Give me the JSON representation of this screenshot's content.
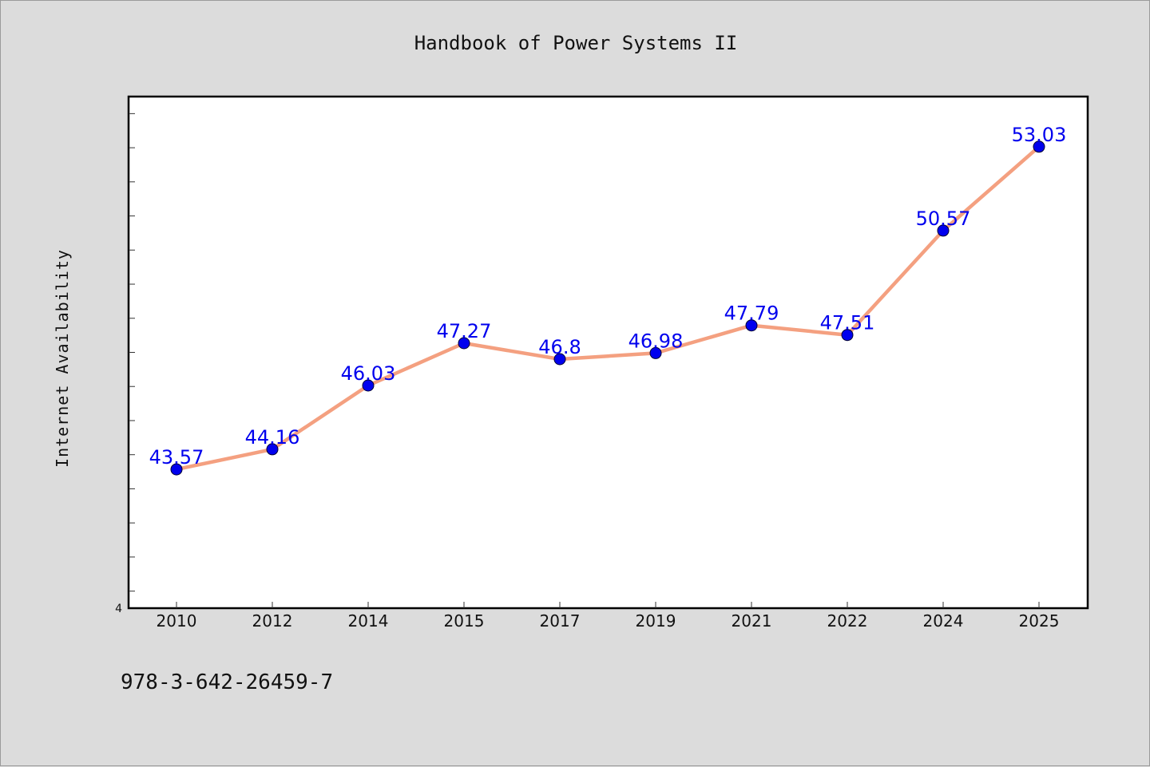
{
  "chart_data": {
    "type": "line",
    "title": "Handbook of Power Systems II",
    "xlabel": "",
    "ylabel": "Internet Availability",
    "categories": [
      "2010",
      "2012",
      "2014",
      "2015",
      "2017",
      "2019",
      "2021",
      "2022",
      "2024",
      "2025"
    ],
    "values": [
      43.57,
      44.16,
      46.03,
      47.27,
      46.8,
      46.98,
      47.79,
      47.51,
      50.57,
      53.03
    ],
    "data_labels": [
      "43.57",
      "44.16",
      "46.03",
      "47.27",
      "46.8",
      "46.98",
      "47.79",
      "47.51",
      "50.57",
      "53.03"
    ],
    "y_tick_labels": [
      {
        "value": 39.5,
        "label": "4"
      }
    ],
    "ylim": [
      39.5,
      54.5
    ],
    "line_color": "#f4a080",
    "marker_color": "#0000ee",
    "label_color": "#0000ee",
    "grid": false,
    "legend": "none"
  },
  "footer": {
    "isbn": "978-3-642-26459-7"
  }
}
